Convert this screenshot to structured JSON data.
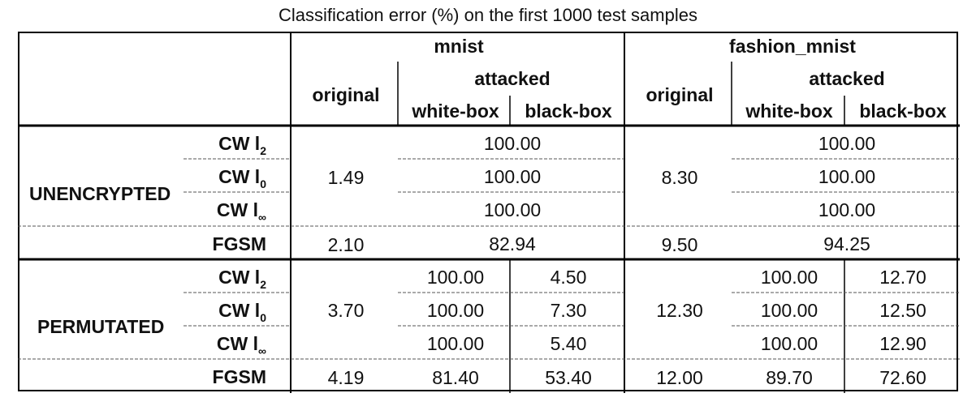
{
  "caption": "Classification error (%) on the first 1000 test samples",
  "headers": {
    "mnist": "mnist",
    "fashion_mnist": "fashion_mnist",
    "original": "original",
    "attacked": "attacked",
    "white_box": "white-box",
    "black_box": "black-box"
  },
  "groups": {
    "unencrypted": "UNENCRYPTED",
    "permutated": "PERMUTATED"
  },
  "attacks": {
    "cw_l2": {
      "base": "CW l",
      "sub": "2"
    },
    "cw_l0": {
      "base": "CW l",
      "sub": "0"
    },
    "cw_linf": {
      "base": "CW l",
      "sub": "∞"
    },
    "fgsm": "FGSM"
  },
  "unencrypted": {
    "mnist_original": "1.49",
    "mnist_attacked": [
      "100.00",
      "100.00",
      "100.00"
    ],
    "fmnist_original": "8.30",
    "fmnist_attacked": [
      "100.00",
      "100.00",
      "100.00"
    ],
    "fgsm": {
      "mnist_original": "2.10",
      "mnist_attacked": "82.94",
      "fmnist_original": "9.50",
      "fmnist_attacked": "94.25"
    }
  },
  "permutated": {
    "mnist_original": "3.70",
    "mnist_white": [
      "100.00",
      "100.00",
      "100.00"
    ],
    "mnist_black": [
      "4.50",
      "7.30",
      "5.40"
    ],
    "fmnist_original": "12.30",
    "fmnist_white": [
      "100.00",
      "100.00",
      "100.00"
    ],
    "fmnist_black": [
      "12.70",
      "12.50",
      "12.90"
    ],
    "fgsm": {
      "mnist_original": "4.19",
      "mnist_white": "81.40",
      "mnist_black": "53.40",
      "fmnist_original": "12.00",
      "fmnist_white": "89.70",
      "fmnist_black": "72.60"
    }
  }
}
